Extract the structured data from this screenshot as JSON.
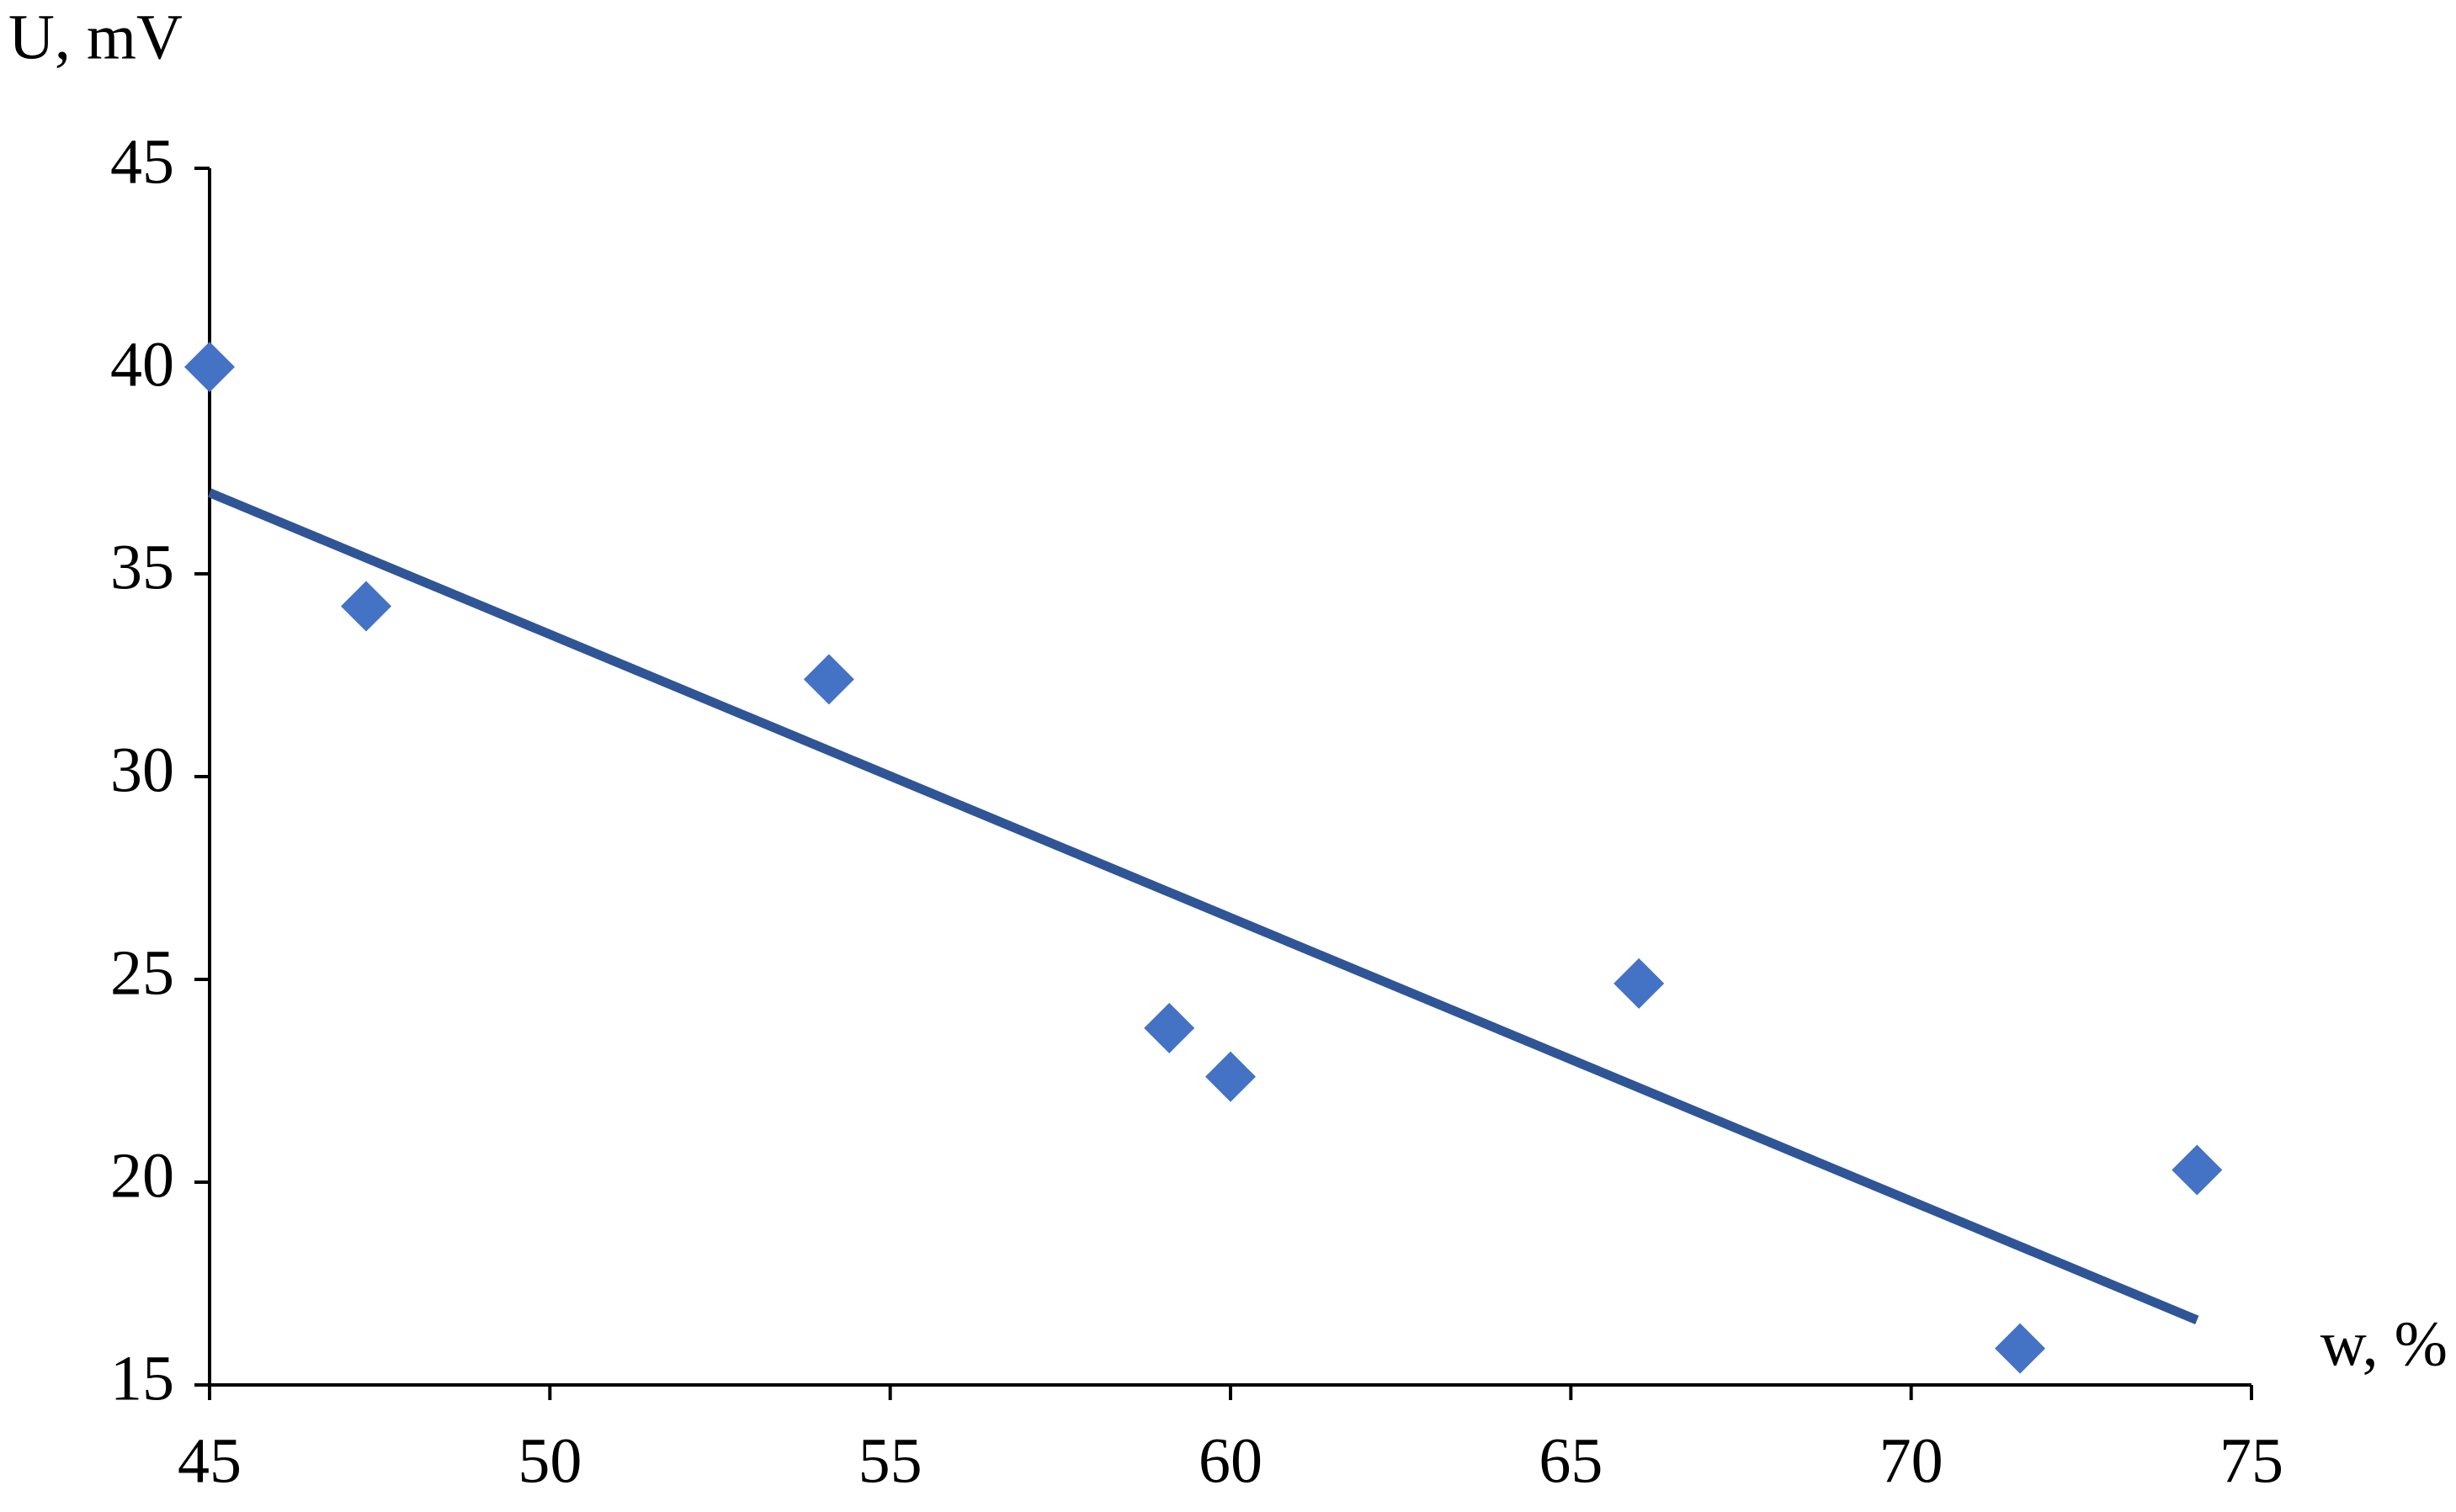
{
  "chart_data": {
    "type": "scatter",
    "y_label": "U, mV",
    "x_label": "w, %",
    "xlim": [
      45,
      75
    ],
    "xticks": [
      45,
      50,
      55,
      60,
      65,
      70,
      75
    ],
    "ylim": [
      15,
      45
    ],
    "yticks": [
      15,
      20,
      25,
      30,
      35,
      40,
      45
    ],
    "series": [
      {
        "color": "#4472c4",
        "x": [
          45,
          47.3,
          54.1,
          59.1,
          60,
          66,
          71.6,
          74.2
        ],
        "values": [
          40.1,
          34.2,
          32.4,
          23.8,
          22.6,
          24.9,
          15.9,
          20.3
        ]
      }
    ],
    "trendline": {
      "color": "#2f5597",
      "x": [
        45,
        74.2
      ],
      "values": [
        37.0,
        16.6
      ]
    }
  }
}
